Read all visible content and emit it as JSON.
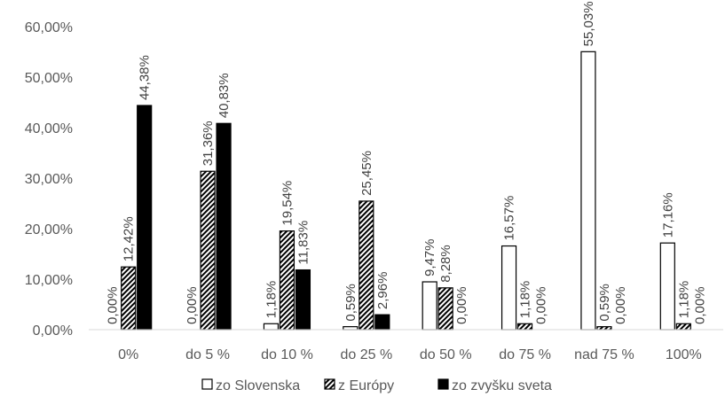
{
  "chart_data": {
    "type": "bar",
    "title": "",
    "xlabel": "",
    "ylabel": "",
    "ylim": [
      0,
      60
    ],
    "y_ticks": [
      "0,00%",
      "10,00%",
      "20,00%",
      "30,00%",
      "40,00%",
      "50,00%",
      "60,00%"
    ],
    "grid": false,
    "legend_position": "bottom",
    "categories": [
      "0%",
      "do 5 %",
      "do 10 %",
      "do 25 %",
      "do 50 %",
      "do 75 %",
      "nad 75 %",
      "100%"
    ],
    "series": [
      {
        "name": "zo Slovenska",
        "fill": "white",
        "values": [
          0.0,
          0.0,
          1.18,
          0.59,
          9.47,
          16.57,
          55.03,
          17.16
        ],
        "labels": [
          "0,00%",
          "0,00%",
          "1,18%",
          "0,59%",
          "9,47%",
          "16,57%",
          "55,03%",
          "17,16%"
        ]
      },
      {
        "name": "z Európy",
        "fill": "hatched",
        "values": [
          12.42,
          31.36,
          19.54,
          25.45,
          8.28,
          1.18,
          0.59,
          1.18
        ],
        "labels": [
          "12,42%",
          "31,36%",
          "19,54%",
          "25,45%",
          "8,28%",
          "1,18%",
          "0,59%",
          "1,18%"
        ]
      },
      {
        "name": "zo zvyšku sveta",
        "fill": "black",
        "values": [
          44.38,
          40.83,
          11.83,
          2.96,
          0.0,
          0.0,
          0.0,
          0.0
        ],
        "labels": [
          "44,38%",
          "40,83%",
          "11,83%",
          "2,96%",
          "0,00%",
          "0,00%",
          "0,00%",
          "0,00%"
        ]
      }
    ]
  }
}
